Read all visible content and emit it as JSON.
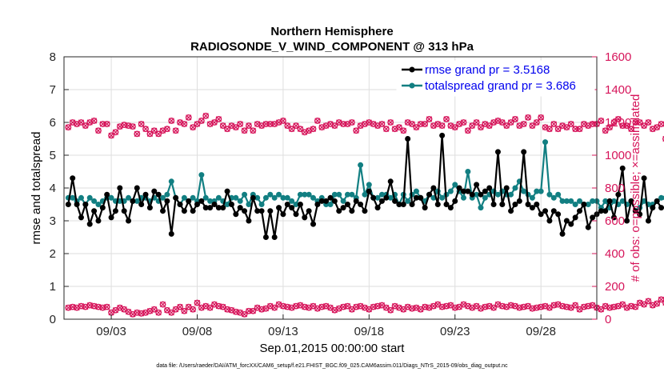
{
  "colors": {
    "rmse": "#000000",
    "spread": "#127f82",
    "obs": "#d6145a",
    "grid": "#dedede",
    "legend_text": "#0000ee"
  },
  "chart_data": {
    "type": "line",
    "title_line1": "Northern Hemisphere",
    "title_line2": "RADIOSONDE_V_WIND_COMPONENT @ 313 hPa",
    "xlabel": "Sep.01,2015 00:00:00 start",
    "ylabel_left": "rmse and totalspread",
    "ylabel_right": "# of obs: o=possible; ×=assimilated",
    "footnote": "data file: /Users/raeder/DAI/ATM_forcXX/CAM6_setup/f.e21.FHIST_BGC.f09_025.CAM6assim.011/Diags_NTrS_2015-09/obs_diag_output.nc",
    "xlim": [
      0.25,
      31.25
    ],
    "ylim_left": [
      0,
      8
    ],
    "ylim_right": [
      0,
      1600
    ],
    "x_ticks": [
      {
        "x": 3,
        "label": "09/03"
      },
      {
        "x": 8,
        "label": "09/08"
      },
      {
        "x": 13,
        "label": "09/13"
      },
      {
        "x": 18,
        "label": "09/18"
      },
      {
        "x": 23,
        "label": "09/23"
      },
      {
        "x": 28,
        "label": "09/28"
      }
    ],
    "y_ticks_left": [
      "0",
      "1",
      "2",
      "3",
      "4",
      "5",
      "6",
      "7",
      "8"
    ],
    "y_ticks_right": [
      "0",
      "200",
      "400",
      "600",
      "800",
      "1000",
      "1200",
      "1400",
      "1600"
    ],
    "start_day": 0.5,
    "step_days": 0.25,
    "series": [
      {
        "name": "rmse",
        "legend": "rmse grand pr = 3.5168",
        "axis": "left",
        "values": [
          3.5,
          4.3,
          3.5,
          3.1,
          3.5,
          2.9,
          3.3,
          3.0,
          3.4,
          3.8,
          3.1,
          3.3,
          4.0,
          3.3,
          3.0,
          3.6,
          4.0,
          3.5,
          3.8,
          3.4,
          3.9,
          3.8,
          3.3,
          3.6,
          2.6,
          3.7,
          3.5,
          3.3,
          3.6,
          3.3,
          3.5,
          3.6,
          3.4,
          3.4,
          3.5,
          3.4,
          3.4,
          3.9,
          3.5,
          3.2,
          3.4,
          3.3,
          3.0,
          3.7,
          3.3,
          3.3,
          2.5,
          3.3,
          2.5,
          3.4,
          3.2,
          3.5,
          3.4,
          3.2,
          3.5,
          3.1,
          3.3,
          2.9,
          3.5,
          3.6,
          3.6,
          3.7,
          3.6,
          3.3,
          3.4,
          3.5,
          3.3,
          3.6,
          3.5,
          3.3,
          3.9,
          3.7,
          3.4,
          3.6,
          3.7,
          4.2,
          3.6,
          3.5,
          3.5,
          5.5,
          3.5,
          3.7,
          3.7,
          3.4,
          3.8,
          4.0,
          3.5,
          5.6,
          3.5,
          3.4,
          3.6,
          4.0,
          3.9,
          3.9,
          3.8,
          4.1,
          3.8,
          3.9,
          4.0,
          3.5,
          5.1,
          3.5,
          4.0,
          3.3,
          3.5,
          3.6,
          5.1,
          3.5,
          3.4,
          3.5,
          3.2,
          3.3,
          3.0,
          3.3,
          3.2,
          2.6,
          3.0,
          2.9,
          3.1,
          3.3,
          3.5,
          2.8,
          3.1,
          3.2,
          3.3,
          3.3,
          3.6,
          3.1,
          3.8,
          4.6,
          3.0,
          3.6,
          3.3,
          3.2,
          4.3,
          3.0,
          3.4,
          3.6,
          3.4
        ]
      },
      {
        "name": "totalspread",
        "legend": "totalspread grand pr = 3.686",
        "axis": "left",
        "values": [
          3.7,
          3.7,
          3.6,
          3.7,
          3.5,
          3.7,
          3.6,
          3.5,
          3.6,
          3.7,
          3.7,
          3.6,
          3.6,
          3.6,
          3.7,
          3.6,
          3.6,
          3.7,
          3.7,
          3.6,
          3.7,
          3.6,
          3.7,
          3.8,
          4.2,
          3.7,
          3.5,
          3.7,
          3.6,
          3.7,
          3.6,
          4.4,
          3.7,
          3.6,
          3.6,
          3.7,
          3.6,
          3.5,
          3.7,
          3.7,
          3.6,
          3.8,
          3.5,
          3.8,
          3.7,
          3.5,
          3.7,
          3.8,
          3.7,
          3.8,
          3.7,
          3.7,
          3.6,
          3.5,
          3.8,
          3.8,
          3.8,
          3.7,
          3.6,
          3.7,
          3.5,
          3.5,
          3.8,
          3.8,
          3.6,
          3.8,
          3.8,
          3.7,
          4.7,
          3.8,
          4.1,
          3.7,
          3.7,
          3.8,
          3.8,
          3.7,
          3.8,
          3.5,
          3.8,
          3.6,
          3.8,
          3.9,
          3.7,
          3.6,
          3.8,
          3.7,
          3.9,
          3.7,
          3.8,
          3.9,
          4.1,
          3.9,
          3.7,
          4.5,
          3.7,
          3.8,
          3.4,
          3.7,
          3.8,
          3.9,
          3.8,
          3.9,
          3.8,
          3.8,
          4.0,
          4.2,
          3.9,
          3.8,
          3.7,
          3.9,
          3.9,
          5.4,
          3.8,
          3.7,
          3.8,
          3.6,
          3.6,
          3.6,
          3.5,
          3.6,
          3.5,
          3.5,
          3.6,
          3.6,
          3.4,
          3.6,
          3.4,
          3.6,
          3.5,
          3.6,
          3.5,
          3.6,
          3.3,
          3.4,
          3.6,
          3.5,
          3.5,
          3.6,
          3.7,
          3.7,
          3.4,
          3.8,
          3.7
        ]
      },
      {
        "name": "obs_possible",
        "axis": "right",
        "values": [
          1170,
          1200,
          1190,
          1200,
          1180,
          1200,
          1210,
          1150,
          1190,
          1190,
          1120,
          1140,
          1175,
          1185,
          1180,
          1175,
          1130,
          1190,
          1160,
          1130,
          1150,
          1130,
          1150,
          1160,
          1210,
          1150,
          1200,
          1190,
          1230,
          1170,
          1190,
          1210,
          1240,
          1190,
          1200,
          1220,
          1180,
          1160,
          1180,
          1170,
          1190,
          1150,
          1180,
          1150,
          1190,
          1180,
          1190,
          1190,
          1190,
          1200,
          1210,
          1180,
          1160,
          1180,
          1160,
          1140,
          1150,
          1160,
          1210,
          1170,
          1180,
          1190,
          1180,
          1200,
          1190,
          1190,
          1200,
          1150,
          1180,
          1190,
          1200,
          1190,
          1180,
          1190,
          1160,
          1200,
          1160,
          1170,
          1150,
          1200,
          1190,
          1170,
          1190,
          1190,
          1220,
          1180,
          1190,
          1180,
          1220,
          1180,
          1170,
          1190,
          1200,
          1150,
          1180,
          1200,
          1170,
          1190,
          1180,
          1200,
          1210,
          1200,
          1180,
          1200,
          1220,
          1180,
          1190,
          1230,
          1180,
          1200,
          1230,
          1170,
          1160,
          1190,
          1160,
          1180,
          1170,
          1190,
          1160,
          1160,
          1190,
          1180,
          1190,
          1190,
          1210,
          1150,
          1170,
          1200,
          1220,
          1180,
          1180,
          1160,
          1200,
          1200,
          1180,
          1200,
          1160,
          1170,
          1190,
          1100,
          1180
        ]
      },
      {
        "name": "obs_assimilated",
        "axis": "right",
        "values": [
          70,
          75,
          70,
          80,
          75,
          85,
          80,
          75,
          70,
          75,
          40,
          55,
          70,
          60,
          45,
          30,
          40,
          35,
          40,
          50,
          60,
          40,
          90,
          55,
          40,
          60,
          75,
          50,
          75,
          60,
          100,
          70,
          80,
          70,
          90,
          80,
          75,
          60,
          55,
          45,
          40,
          30,
          50,
          50,
          70,
          60,
          65,
          80,
          70,
          90,
          80,
          75,
          70,
          80,
          85,
          75,
          70,
          80,
          65,
          75,
          80,
          70,
          55,
          65,
          75,
          80,
          60,
          75,
          80,
          70,
          60,
          75,
          80,
          85,
          70,
          55,
          80,
          70,
          60,
          75,
          65,
          70,
          60,
          75,
          70,
          80,
          90,
          75,
          80,
          85,
          70,
          75,
          90,
          80,
          70,
          80,
          65,
          75,
          80,
          70,
          90,
          80,
          75,
          85,
          80,
          70,
          75,
          80,
          65,
          70,
          75,
          80,
          70,
          85,
          90,
          80,
          75,
          70,
          85,
          60,
          75,
          80,
          85,
          70,
          60,
          80,
          70,
          75,
          80,
          90,
          70,
          80,
          75,
          100,
          90,
          110,
          85,
          95,
          120,
          100,
          180
        ]
      }
    ],
    "markers": {
      "rmse": "filled circle",
      "totalspread": "filled circle",
      "obs_possible": "circle",
      "obs_assimilated": "x"
    }
  }
}
